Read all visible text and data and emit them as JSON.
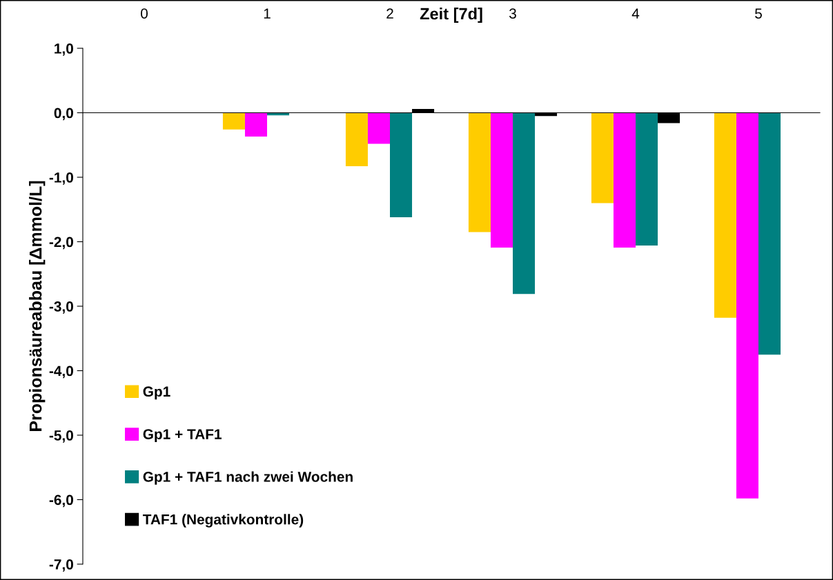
{
  "chart_data": {
    "type": "bar",
    "xlabel": "Zeit [7d]",
    "ylabel": "Propionsäureabbau [Δmmol/L]",
    "categories": [
      "0",
      "1",
      "2",
      "3",
      "4",
      "5"
    ],
    "series": [
      {
        "name": "Gp1",
        "color": "#ffcc00",
        "values": [
          0,
          -0.26,
          -0.83,
          -1.85,
          -1.4,
          -3.18
        ]
      },
      {
        "name": "Gp1 + TAF1",
        "color": "#ff00ff",
        "values": [
          0,
          -0.37,
          -0.48,
          -2.09,
          -2.09,
          -5.98
        ]
      },
      {
        "name": "Gp1 + TAF1 nach zwei Wochen",
        "color": "#008080",
        "values": [
          0,
          -0.04,
          -1.62,
          -2.81,
          -2.06,
          -3.75
        ]
      },
      {
        "name": "TAF1 (Negativkontrolle)",
        "color": "#000000",
        "values": [
          0,
          0,
          0.06,
          -0.05,
          -0.16,
          0
        ]
      }
    ],
    "ylim": [
      -7,
      1
    ],
    "yticks": [
      {
        "value": -7,
        "label": "-7,0"
      },
      {
        "value": -6,
        "label": "-6,0"
      },
      {
        "value": -5,
        "label": "-5,0"
      },
      {
        "value": -4,
        "label": "-4,0"
      },
      {
        "value": -3,
        "label": "-3,0"
      },
      {
        "value": -2,
        "label": "-2,0"
      },
      {
        "value": -1,
        "label": "-1,0"
      },
      {
        "value": 0,
        "label": "0,0"
      },
      {
        "value": 1,
        "label": "1,0"
      }
    ],
    "legend": "bottom left"
  }
}
